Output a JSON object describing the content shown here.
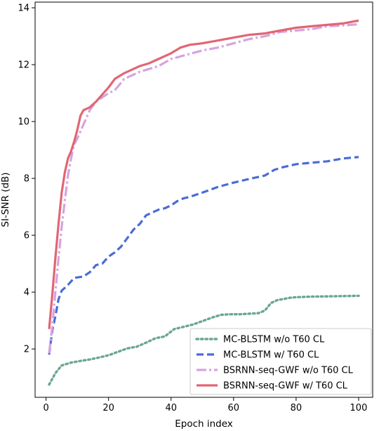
{
  "chart_data": {
    "type": "line",
    "title": "",
    "xlabel": "Epoch index",
    "ylabel": "SI-SNR (dB)",
    "xlim": [
      -3.5,
      104.5
    ],
    "ylim": [
      0.3,
      14.2
    ],
    "xticks": [
      0,
      20,
      40,
      60,
      80,
      100
    ],
    "yticks": [
      2,
      4,
      6,
      8,
      10,
      12,
      14
    ],
    "grid": false,
    "legend_position": "lower-right",
    "series": [
      {
        "name": "MC-BLSTM w/o T60 CL",
        "color": "#6aa88e",
        "style": "dotted",
        "x": [
          1,
          3,
          5,
          8,
          11,
          14,
          17,
          20,
          23,
          26,
          29,
          32,
          35,
          38,
          41,
          44,
          47,
          50,
          53,
          56,
          59,
          62,
          65,
          68,
          70,
          72,
          74,
          76,
          78,
          80,
          85,
          90,
          95,
          100
        ],
        "y": [
          0.75,
          1.15,
          1.42,
          1.52,
          1.58,
          1.63,
          1.7,
          1.78,
          1.9,
          2.02,
          2.08,
          2.22,
          2.38,
          2.44,
          2.7,
          2.78,
          2.86,
          2.98,
          3.1,
          3.2,
          3.22,
          3.22,
          3.24,
          3.26,
          3.35,
          3.62,
          3.72,
          3.76,
          3.8,
          3.82,
          3.84,
          3.85,
          3.86,
          3.87
        ]
      },
      {
        "name": "MC-BLSTM w/ T60 CL",
        "color": "#4a6bd8",
        "style": "dashed",
        "x": [
          1,
          2,
          3,
          4,
          5,
          7,
          9,
          12,
          14,
          16,
          18,
          20,
          22,
          24,
          26,
          28,
          30,
          32,
          34,
          36,
          38,
          40,
          42,
          44,
          46,
          50,
          55,
          60,
          65,
          70,
          73,
          76,
          80,
          85,
          90,
          95,
          100
        ],
        "y": [
          1.8,
          2.65,
          3.15,
          3.75,
          4.05,
          4.25,
          4.5,
          4.55,
          4.7,
          4.95,
          5.0,
          5.25,
          5.4,
          5.6,
          5.9,
          6.2,
          6.4,
          6.7,
          6.8,
          6.9,
          6.95,
          7.05,
          7.2,
          7.3,
          7.35,
          7.5,
          7.7,
          7.85,
          7.98,
          8.1,
          8.3,
          8.4,
          8.5,
          8.55,
          8.6,
          8.7,
          8.75
        ]
      },
      {
        "name": "BSRNN-seq-GWF w/o T60 CL",
        "color": "#d6a3e0",
        "style": "dashdot",
        "x": [
          1,
          2,
          3,
          4,
          5,
          6,
          7,
          8,
          9,
          10,
          12,
          14,
          16,
          18,
          20,
          22,
          25,
          28,
          30,
          33,
          36,
          40,
          45,
          50,
          55,
          60,
          65,
          70,
          75,
          80,
          85,
          90,
          95,
          100
        ],
        "y": [
          1.85,
          2.8,
          4.0,
          5.2,
          6.3,
          7.2,
          8.1,
          8.7,
          9.2,
          9.4,
          9.9,
          10.4,
          10.7,
          10.85,
          11.0,
          11.1,
          11.5,
          11.65,
          11.75,
          11.85,
          11.95,
          12.2,
          12.35,
          12.5,
          12.6,
          12.75,
          12.9,
          13.0,
          13.15,
          13.2,
          13.25,
          13.35,
          13.38,
          13.42
        ]
      },
      {
        "name": "BSRNN-seq-GWF w/ T60 CL",
        "color": "#e06673",
        "style": "solid",
        "x": [
          1,
          2,
          3,
          4,
          5,
          6,
          7,
          8,
          9,
          10,
          11,
          12,
          14,
          16,
          18,
          20,
          22,
          25,
          28,
          30,
          33,
          36,
          40,
          43,
          46,
          50,
          55,
          60,
          65,
          70,
          75,
          80,
          85,
          90,
          95,
          100
        ],
        "y": [
          2.7,
          3.9,
          5.2,
          6.4,
          7.5,
          8.2,
          8.7,
          8.95,
          9.3,
          9.7,
          10.2,
          10.4,
          10.5,
          10.7,
          10.95,
          11.2,
          11.5,
          11.7,
          11.85,
          11.95,
          12.05,
          12.2,
          12.4,
          12.6,
          12.7,
          12.75,
          12.85,
          12.95,
          13.05,
          13.1,
          13.2,
          13.3,
          13.35,
          13.4,
          13.45,
          13.55
        ]
      }
    ]
  }
}
